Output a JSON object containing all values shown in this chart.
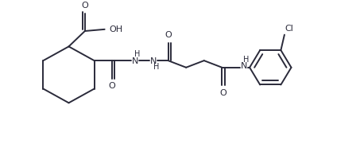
{
  "bg_color": "#ffffff",
  "line_color": "#2a2a3a",
  "line_width": 1.4,
  "fig_width": 4.53,
  "fig_height": 1.96,
  "dpi": 100,
  "xlim": [
    0,
    10
  ],
  "ylim": [
    0,
    4.5
  ]
}
